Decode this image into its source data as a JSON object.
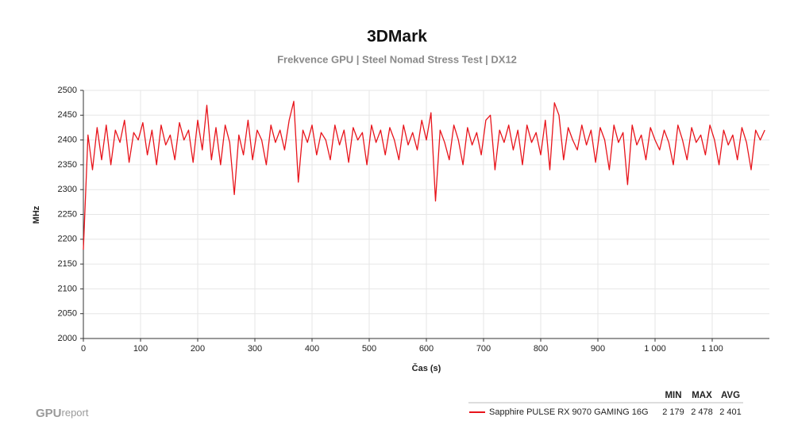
{
  "chart_data": {
    "type": "line",
    "title": "3DMark",
    "subtitle": "Frekvence GPU | Steel Nomad Stress Test | DX12",
    "y_label": "MHz",
    "x_label": "Čas (s)",
    "xlim": [
      0,
      1200
    ],
    "ylim": [
      2000,
      2500
    ],
    "xticks": [
      0,
      100,
      200,
      300,
      400,
      500,
      600,
      700,
      800,
      900,
      {
        "value": 1000,
        "label": "1 000"
      },
      {
        "value": 1100,
        "label": "1 100"
      }
    ],
    "yticks": [
      2000,
      2050,
      2100,
      2150,
      2200,
      2250,
      2300,
      2350,
      2400,
      2450,
      2500
    ],
    "grid": true,
    "stat_headers": [
      "MIN",
      "MAX",
      "AVG"
    ],
    "watermark": {
      "bold": "GPU",
      "light": "report"
    },
    "x": [
      0,
      8,
      16,
      24,
      32,
      40,
      48,
      56,
      64,
      72,
      80,
      88,
      96,
      104,
      112,
      120,
      128,
      136,
      144,
      152,
      160,
      168,
      176,
      184,
      192,
      200,
      208,
      216,
      224,
      232,
      240,
      248,
      256,
      264,
      272,
      280,
      288,
      296,
      304,
      312,
      320,
      328,
      336,
      344,
      352,
      360,
      368,
      376,
      384,
      392,
      400,
      408,
      416,
      424,
      432,
      440,
      448,
      456,
      464,
      472,
      480,
      488,
      496,
      504,
      512,
      520,
      528,
      536,
      544,
      552,
      560,
      568,
      576,
      584,
      592,
      600,
      608,
      616,
      624,
      632,
      640,
      648,
      656,
      664,
      672,
      680,
      688,
      696,
      704,
      712,
      720,
      728,
      736,
      744,
      752,
      760,
      768,
      776,
      784,
      792,
      800,
      808,
      816,
      824,
      832,
      840,
      848,
      856,
      864,
      872,
      880,
      888,
      896,
      904,
      912,
      920,
      928,
      936,
      944,
      952,
      960,
      968,
      976,
      984,
      992,
      1000,
      1008,
      1016,
      1024,
      1032,
      1040,
      1048,
      1056,
      1064,
      1072,
      1080,
      1088,
      1096,
      1104,
      1112,
      1120,
      1128,
      1136,
      1144,
      1152,
      1160,
      1168,
      1176,
      1184,
      1192
    ],
    "series": [
      {
        "name": "Sapphire PULSE RX 9070 GAMING 16G",
        "color": "#e8141b",
        "stats": [
          {
            "value": 2179,
            "label": "2 179"
          },
          {
            "value": 2478,
            "label": "2 478"
          },
          {
            "value": 2401,
            "label": "2 401"
          }
        ],
        "values": [
          2179,
          2410,
          2340,
          2425,
          2360,
          2430,
          2350,
          2420,
          2395,
          2440,
          2355,
          2415,
          2400,
          2435,
          2370,
          2420,
          2350,
          2430,
          2390,
          2410,
          2360,
          2435,
          2400,
          2420,
          2355,
          2440,
          2380,
          2470,
          2360,
          2425,
          2350,
          2430,
          2395,
          2290,
          2410,
          2370,
          2440,
          2360,
          2420,
          2400,
          2350,
          2430,
          2395,
          2420,
          2380,
          2440,
          2478,
          2315,
          2420,
          2395,
          2430,
          2370,
          2415,
          2400,
          2360,
          2430,
          2390,
          2420,
          2355,
          2425,
          2400,
          2415,
          2350,
          2430,
          2395,
          2420,
          2370,
          2425,
          2400,
          2360,
          2430,
          2390,
          2415,
          2380,
          2440,
          2400,
          2455,
          2277,
          2420,
          2395,
          2360,
          2430,
          2400,
          2350,
          2425,
          2390,
          2415,
          2370,
          2440,
          2450,
          2340,
          2420,
          2395,
          2430,
          2380,
          2420,
          2350,
          2430,
          2395,
          2415,
          2370,
          2440,
          2340,
          2475,
          2450,
          2360,
          2425,
          2400,
          2380,
          2430,
          2390,
          2420,
          2355,
          2425,
          2400,
          2340,
          2430,
          2395,
          2415,
          2310,
          2430,
          2390,
          2410,
          2360,
          2425,
          2400,
          2380,
          2420,
          2395,
          2350,
          2430,
          2400,
          2360,
          2425,
          2395,
          2410,
          2370,
          2430,
          2400,
          2350,
          2420,
          2390,
          2410,
          2360,
          2425,
          2395,
          2340,
          2420,
          2400,
          2420
        ]
      }
    ]
  }
}
